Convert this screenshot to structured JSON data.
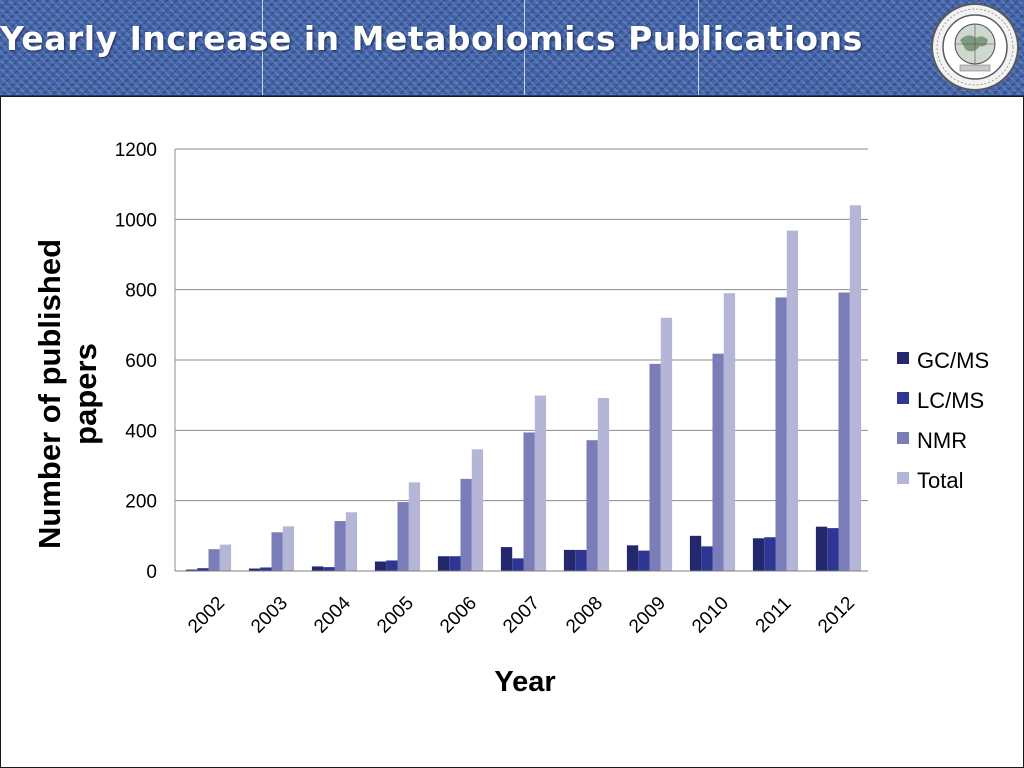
{
  "slide": {
    "title": "Yearly Increase in Metabolomics Publications",
    "logo_icon": "institution-seal-icon"
  },
  "colors": {
    "header": "#3f62a8",
    "gcms": "#23276b",
    "lcms": "#2e3592",
    "nmr": "#7a7db7",
    "total": "#b4b5d7"
  },
  "chart_data": {
    "type": "bar",
    "title": "",
    "xlabel": "Year",
    "ylabel": "Number of published papers",
    "ylim": [
      0,
      1200
    ],
    "yticks": [
      0,
      200,
      400,
      600,
      800,
      1000,
      1200
    ],
    "grid": true,
    "legend_position": "right",
    "categories": [
      "2002",
      "2003",
      "2004",
      "2005",
      "2006",
      "2007",
      "2008",
      "2009",
      "2010",
      "2011",
      "2012"
    ],
    "series": [
      {
        "name": "GC/MS",
        "values": [
          4,
          7,
          13,
          27,
          42,
          68,
          60,
          73,
          100,
          93,
          126
        ]
      },
      {
        "name": "LC/MS",
        "values": [
          8,
          10,
          11,
          30,
          42,
          36,
          60,
          58,
          70,
          96,
          122
        ]
      },
      {
        "name": "NMR",
        "values": [
          62,
          110,
          142,
          196,
          262,
          394,
          372,
          589,
          618,
          778,
          792
        ]
      },
      {
        "name": "Total",
        "values": [
          75,
          127,
          167,
          252,
          346,
          499,
          492,
          720,
          790,
          968,
          1040
        ]
      }
    ]
  }
}
